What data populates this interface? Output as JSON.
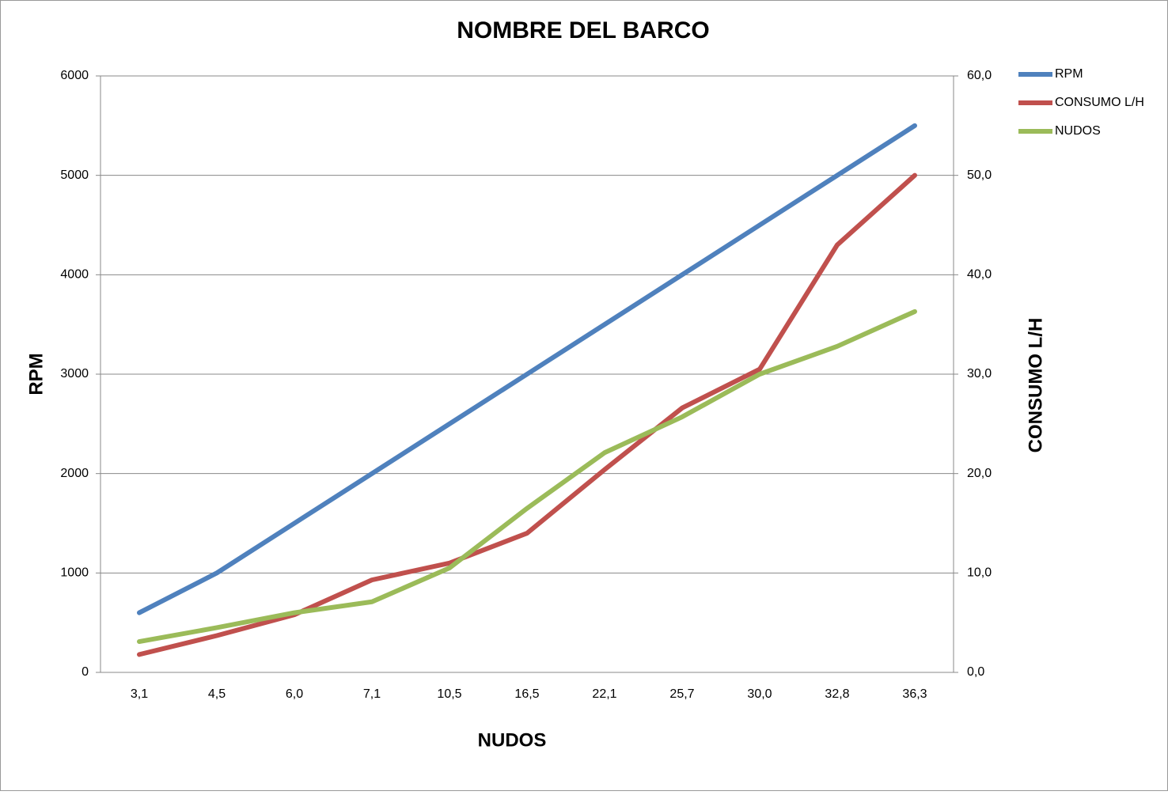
{
  "chart_data": {
    "type": "line",
    "title": "NOMBRE DEL BARCO",
    "x_label": "NUDOS",
    "y_label": "RPM",
    "y2_label": "CONSUMO L/H",
    "categories": [
      "3,1",
      "4,5",
      "6,0",
      "7,1",
      "10,5",
      "16,5",
      "22,1",
      "25,7",
      "30,0",
      "32,8",
      "36,3"
    ],
    "series": [
      {
        "name": "RPM",
        "color": "#4f81bd",
        "values": [
          600,
          1000,
          1500,
          2000,
          2500,
          3000,
          3500,
          4000,
          4500,
          5000,
          5500
        ]
      },
      {
        "name": "CONSUMO L/H",
        "color": "#c0504d",
        "axis": "y2",
        "values": [
          1.8,
          3.7,
          5.8,
          9.3,
          11.0,
          14.0,
          20.4,
          26.6,
          30.5,
          43.0,
          50.0
        ]
      },
      {
        "name": "NUDOS",
        "color": "#9bbb59",
        "axis": "y2",
        "values": [
          3.1,
          4.5,
          6.0,
          7.1,
          10.5,
          16.5,
          22.1,
          25.7,
          30.0,
          32.8,
          36.3
        ]
      }
    ],
    "ylim": [
      0,
      6000
    ],
    "yticks": [
      0,
      1000,
      2000,
      3000,
      4000,
      5000,
      6000
    ],
    "y2lim": [
      0,
      60
    ],
    "y2ticks": [
      {
        "value": 0,
        "label": "0,0"
      },
      {
        "value": 10,
        "label": "10,0"
      },
      {
        "value": 20,
        "label": "20,0"
      },
      {
        "value": 30,
        "label": "30,0"
      },
      {
        "value": 40,
        "label": "40,0"
      },
      {
        "value": 50,
        "label": "50,0"
      },
      {
        "value": 60,
        "label": "60,0"
      }
    ],
    "grid": true,
    "legend": "right"
  }
}
